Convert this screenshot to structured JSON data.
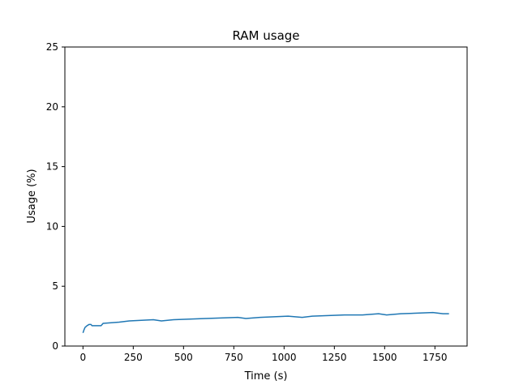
{
  "chart_data": {
    "type": "line",
    "title": "RAM usage",
    "xlabel": "Time (s)",
    "ylabel": "Usage (%)",
    "xlim": [
      -90,
      1910
    ],
    "ylim": [
      0,
      25
    ],
    "x_ticks": [
      0,
      250,
      500,
      750,
      1000,
      1250,
      1500,
      1750
    ],
    "y_ticks": [
      0,
      5,
      10,
      15,
      20,
      25
    ],
    "grid": false,
    "line_color": "#1f77b4",
    "series": [
      {
        "x": [
          0,
          5,
          10,
          20,
          30,
          40,
          45,
          90,
          100,
          180,
          230,
          350,
          390,
          450,
          610,
          770,
          810,
          880,
          1020,
          1090,
          1140,
          1300,
          1380,
          1390,
          1470,
          1510,
          1580,
          1740,
          1790,
          1820
        ],
        "y": [
          1.1,
          1.35,
          1.55,
          1.7,
          1.8,
          1.8,
          1.7,
          1.7,
          1.9,
          2.0,
          2.1,
          2.2,
          2.1,
          2.2,
          2.3,
          2.4,
          2.3,
          2.4,
          2.5,
          2.4,
          2.5,
          2.6,
          2.6,
          2.6,
          2.7,
          2.6,
          2.7,
          2.8,
          2.7,
          2.7
        ]
      }
    ]
  }
}
